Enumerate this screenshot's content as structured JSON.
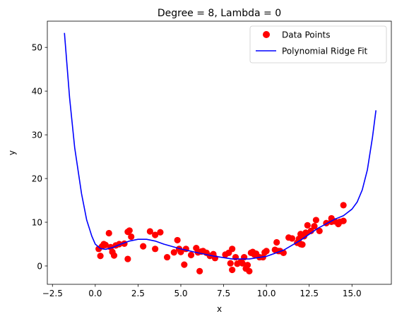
{
  "chart_data": {
    "type": "scatter",
    "title": "Degree = 8, Lambda = 0",
    "xlabel": "x",
    "ylabel": "y",
    "xlim": [
      -2.8,
      17.3
    ],
    "ylim": [
      -4.2,
      56.0
    ],
    "xticks": [
      -2.5,
      0.0,
      2.5,
      5.0,
      7.5,
      10.0,
      12.5,
      15.0
    ],
    "xtick_labels": [
      "−2.5",
      "0.0",
      "2.5",
      "5.0",
      "7.5",
      "10.0",
      "12.5",
      "15.0"
    ],
    "yticks": [
      0,
      10,
      20,
      30,
      40,
      50
    ],
    "ytick_labels": [
      "0",
      "10",
      "20",
      "30",
      "40",
      "50"
    ],
    "grid": false,
    "legend_position": "top-right",
    "colors": {
      "points": "#ff0000",
      "fit": "#0000ff"
    },
    "series": [
      {
        "name": "Data Points",
        "kind": "scatter",
        "points": [
          [
            0.2,
            3.9
          ],
          [
            0.3,
            2.3
          ],
          [
            0.4,
            4.5
          ],
          [
            0.5,
            5.0
          ],
          [
            0.6,
            4.8
          ],
          [
            0.8,
            7.5
          ],
          [
            0.9,
            4.3
          ],
          [
            1.0,
            3.2
          ],
          [
            1.1,
            2.4
          ],
          [
            1.2,
            4.7
          ],
          [
            1.4,
            5.0
          ],
          [
            1.7,
            5.1
          ],
          [
            1.9,
            1.6
          ],
          [
            1.9,
            7.8
          ],
          [
            2.0,
            8.1
          ],
          [
            2.1,
            6.7
          ],
          [
            2.8,
            4.5
          ],
          [
            3.2,
            7.9
          ],
          [
            3.5,
            3.9
          ],
          [
            3.5,
            7.1
          ],
          [
            3.8,
            7.7
          ],
          [
            4.2,
            2.0
          ],
          [
            4.6,
            3.1
          ],
          [
            4.8,
            5.9
          ],
          [
            4.9,
            3.9
          ],
          [
            5.0,
            3.2
          ],
          [
            5.2,
            0.3
          ],
          [
            5.3,
            3.9
          ],
          [
            5.6,
            2.5
          ],
          [
            5.9,
            4.1
          ],
          [
            6.0,
            3.1
          ],
          [
            6.1,
            -1.2
          ],
          [
            6.2,
            3.3
          ],
          [
            6.3,
            3.4
          ],
          [
            6.5,
            3.0
          ],
          [
            6.7,
            2.3
          ],
          [
            6.9,
            2.7
          ],
          [
            7.0,
            1.8
          ],
          [
            7.6,
            2.6
          ],
          [
            7.8,
            3.0
          ],
          [
            7.9,
            0.6
          ],
          [
            8.0,
            3.9
          ],
          [
            8.0,
            -0.9
          ],
          [
            8.2,
            2.0
          ],
          [
            8.3,
            0.5
          ],
          [
            8.5,
            0.9
          ],
          [
            8.6,
            0.6
          ],
          [
            8.7,
            2.0
          ],
          [
            8.8,
            -0.6
          ],
          [
            8.9,
            0.2
          ],
          [
            9.0,
            -1.2
          ],
          [
            9.1,
            3.0
          ],
          [
            9.2,
            3.2
          ],
          [
            9.3,
            2.6
          ],
          [
            9.4,
            2.8
          ],
          [
            9.6,
            2.0
          ],
          [
            9.8,
            2.0
          ],
          [
            9.9,
            3.1
          ],
          [
            10.0,
            3.4
          ],
          [
            10.5,
            3.7
          ],
          [
            10.6,
            5.4
          ],
          [
            10.7,
            3.4
          ],
          [
            10.8,
            3.4
          ],
          [
            11.0,
            3.0
          ],
          [
            11.3,
            6.5
          ],
          [
            11.5,
            6.3
          ],
          [
            11.8,
            5.3
          ],
          [
            11.9,
            6.2
          ],
          [
            12.0,
            5.0
          ],
          [
            12.0,
            7.3
          ],
          [
            12.1,
            4.9
          ],
          [
            12.2,
            6.8
          ],
          [
            12.3,
            7.6
          ],
          [
            12.4,
            9.3
          ],
          [
            12.6,
            8.0
          ],
          [
            12.8,
            9.1
          ],
          [
            12.9,
            10.5
          ],
          [
            13.1,
            8.0
          ],
          [
            13.5,
            9.8
          ],
          [
            13.8,
            10.1
          ],
          [
            13.8,
            10.9
          ],
          [
            14.0,
            10.2
          ],
          [
            14.2,
            9.6
          ],
          [
            14.3,
            10.1
          ],
          [
            14.5,
            10.3
          ],
          [
            14.5,
            13.9
          ]
        ]
      },
      {
        "name": "Polynomial Ridge Fit",
        "kind": "line",
        "points": [
          [
            -1.8,
            53.3
          ],
          [
            -1.5,
            38.5
          ],
          [
            -1.2,
            27.0
          ],
          [
            -0.8,
            16.5
          ],
          [
            -0.5,
            10.5
          ],
          [
            -0.2,
            6.8
          ],
          [
            0.0,
            5.0
          ],
          [
            0.3,
            4.0
          ],
          [
            0.6,
            3.8
          ],
          [
            1.0,
            4.2
          ],
          [
            1.5,
            5.0
          ],
          [
            2.0,
            5.7
          ],
          [
            2.5,
            6.1
          ],
          [
            3.0,
            6.1
          ],
          [
            3.5,
            5.7
          ],
          [
            4.0,
            5.0
          ],
          [
            5.0,
            3.9
          ],
          [
            6.0,
            3.0
          ],
          [
            7.0,
            2.2
          ],
          [
            8.0,
            1.6
          ],
          [
            9.0,
            1.6
          ],
          [
            10.0,
            2.2
          ],
          [
            11.0,
            3.6
          ],
          [
            12.0,
            5.9
          ],
          [
            13.0,
            8.6
          ],
          [
            14.0,
            10.7
          ],
          [
            14.5,
            11.5
          ],
          [
            15.0,
            13.0
          ],
          [
            15.3,
            14.6
          ],
          [
            15.6,
            17.4
          ],
          [
            15.9,
            22.0
          ],
          [
            16.2,
            29.5
          ],
          [
            16.4,
            35.6
          ]
        ]
      }
    ]
  }
}
